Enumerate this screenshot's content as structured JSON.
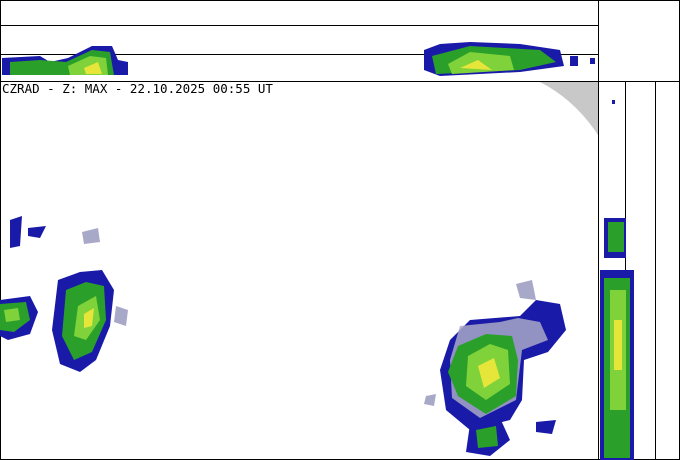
{
  "title": "CZRAD - Z: MAX - 22.10.2025 00:55 UT",
  "product": "MAX",
  "colors": {
    "weak": "#1a1aa8",
    "light": "#2aa02a",
    "moderate": "#7fd23a",
    "heavy": "#e6e63a",
    "clutter": "#a8a8c8",
    "out_of_range": "#c8c8c8"
  }
}
